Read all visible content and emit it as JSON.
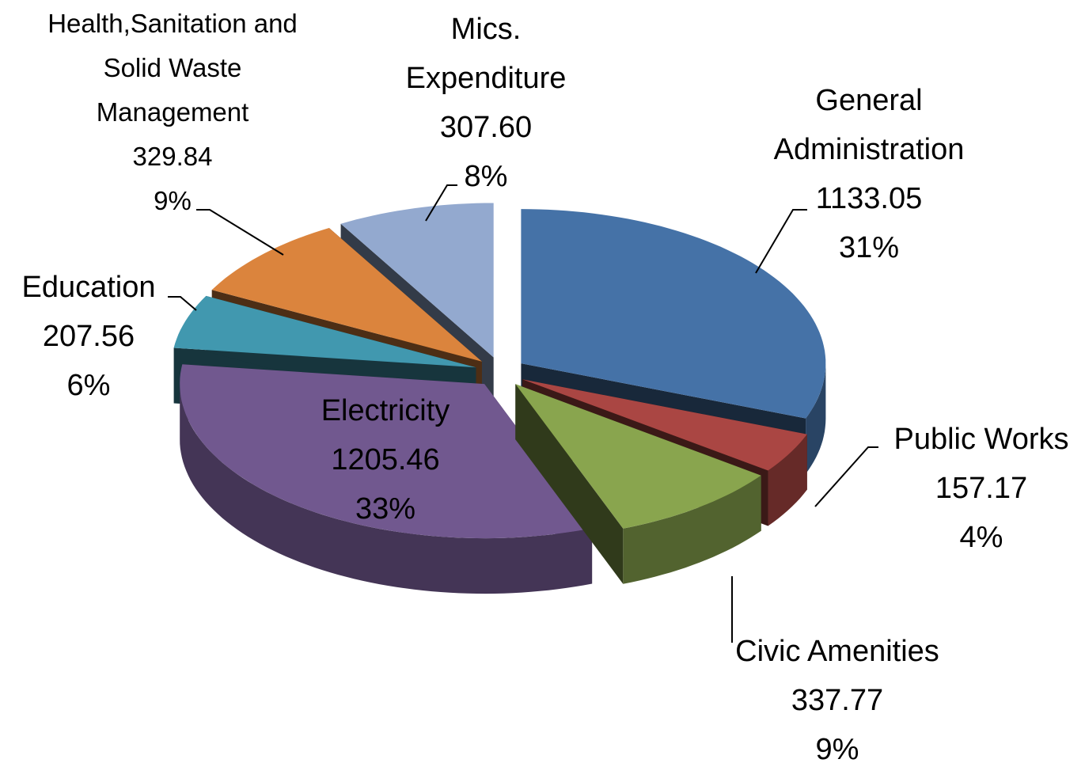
{
  "chart_data": {
    "type": "pie3d",
    "categories": [
      "General Administration",
      "Public Works",
      "Civic Amenities",
      "Electricity",
      "Education",
      "Health,Sanitation and Solid Waste Management",
      "Mics. Expenditure"
    ],
    "values": [
      1133.05,
      157.17,
      337.77,
      1205.46,
      207.56,
      329.84,
      307.6
    ],
    "value_labels": [
      "1133.05",
      "157.17",
      "337.77",
      "1205.46",
      "207.56",
      "329.84",
      "307.60"
    ],
    "percent_labels": [
      "31%",
      "4%",
      "9%",
      "33%",
      "6%",
      "9%",
      "8%"
    ],
    "colors": [
      "#4572a7",
      "#aa4643",
      "#89a54e",
      "#71588f",
      "#4198af",
      "#db843d",
      "#93a9cf"
    ]
  }
}
